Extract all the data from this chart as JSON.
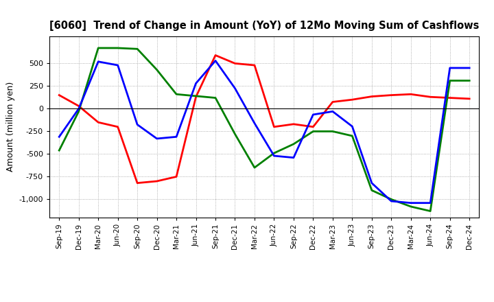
{
  "title": "[6060]  Trend of Change in Amount (YoY) of 12Mo Moving Sum of Cashflows",
  "ylabel": "Amount (million yen)",
  "x_labels": [
    "Sep-19",
    "Dec-19",
    "Mar-20",
    "Jun-20",
    "Sep-20",
    "Dec-20",
    "Mar-21",
    "Jun-21",
    "Sep-21",
    "Dec-21",
    "Mar-22",
    "Jun-22",
    "Sep-22",
    "Dec-22",
    "Mar-23",
    "Jun-23",
    "Sep-23",
    "Dec-23",
    "Mar-24",
    "Jun-24",
    "Sep-24",
    "Dec-24"
  ],
  "operating": [
    150,
    30,
    -150,
    -200,
    -820,
    -800,
    -750,
    130,
    590,
    500,
    480,
    -200,
    -170,
    -200,
    75,
    100,
    135,
    150,
    160,
    130,
    120,
    110
  ],
  "investing": [
    -460,
    -30,
    670,
    670,
    660,
    430,
    160,
    140,
    120,
    -280,
    -650,
    -490,
    -390,
    -250,
    -250,
    -300,
    -900,
    -1000,
    -1080,
    -1130,
    310,
    310
  ],
  "free": [
    -310,
    0,
    520,
    480,
    -175,
    -330,
    -310,
    280,
    530,
    225,
    -160,
    -520,
    -540,
    -65,
    -30,
    -195,
    -820,
    -1020,
    -1040,
    -1040,
    450,
    450
  ],
  "ylim": [
    -1200,
    800
  ],
  "yticks": [
    -1000,
    -750,
    -500,
    -250,
    0,
    250,
    500
  ],
  "colors": {
    "operating": "#ff0000",
    "investing": "#008000",
    "free": "#0000ff"
  },
  "bg_color": "#ffffff",
  "grid_color": "#aaaaaa"
}
